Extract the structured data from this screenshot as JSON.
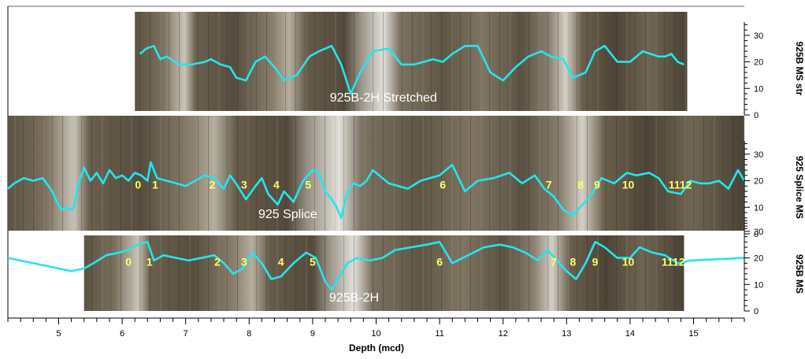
{
  "chart_data": {
    "type": "line",
    "xlabel": "Depth (mcd)",
    "xlim": [
      4.2,
      15.8
    ],
    "x_ticks": [
      5,
      6,
      7,
      8,
      9,
      10,
      11,
      12,
      13,
      14,
      15
    ],
    "ylim": [
      0,
      35
    ],
    "y_ticks": [
      0,
      10,
      20,
      30
    ],
    "line_color": "#22e6f0",
    "label_color": "#ffff66",
    "panels": [
      {
        "side_label": "925B MS str",
        "core_label": "925B-2H Stretched",
        "core_range": [
          6.2,
          14.9
        ],
        "tie_labels": [],
        "x": [
          6.28,
          6.38,
          6.5,
          6.6,
          6.7,
          6.9,
          7.1,
          7.3,
          7.4,
          7.55,
          7.7,
          7.8,
          7.95,
          8.1,
          8.25,
          8.4,
          8.55,
          8.75,
          8.95,
          9.1,
          9.3,
          9.45,
          9.6,
          9.75,
          9.95,
          10.2,
          10.4,
          10.6,
          10.9,
          11.05,
          11.2,
          11.4,
          11.6,
          11.8,
          12.0,
          12.2,
          12.4,
          12.6,
          12.75,
          12.95,
          13.1,
          13.3,
          13.45,
          13.6,
          13.8,
          14.0,
          14.2,
          14.45,
          14.55,
          14.65,
          14.75,
          14.85
        ],
        "y": [
          23,
          25,
          26,
          21,
          22,
          19,
          19,
          20,
          21,
          19,
          18,
          14,
          13,
          20,
          22,
          18,
          13,
          15,
          22,
          24,
          26,
          19,
          8,
          16,
          24,
          25,
          19,
          19,
          21,
          20,
          23,
          26,
          26,
          16,
          13,
          18,
          22,
          24,
          22,
          21,
          14,
          16,
          24,
          26,
          20,
          20,
          24,
          22,
          22,
          23,
          20,
          19
        ]
      },
      {
        "side_label": "925 Splice MS",
        "core_label": "925 Splice",
        "core_range": [
          4.2,
          15.8
        ],
        "tie_labels": [
          {
            "text": "0",
            "x": 6.25
          },
          {
            "text": "1",
            "x": 6.52
          },
          {
            "text": "2",
            "x": 7.42
          },
          {
            "text": "3",
            "x": 7.92
          },
          {
            "text": "4",
            "x": 8.43
          },
          {
            "text": "5",
            "x": 8.93
          },
          {
            "text": "6",
            "x": 11.05
          },
          {
            "text": "7",
            "x": 12.72
          },
          {
            "text": "8",
            "x": 13.22
          },
          {
            "text": "9",
            "x": 13.48
          },
          {
            "text": "10",
            "x": 13.97
          },
          {
            "text": "1112",
            "x": 14.79
          }
        ],
        "x": [
          4.2,
          4.3,
          4.45,
          4.6,
          4.75,
          4.9,
          4.97,
          5.05,
          5.12,
          5.18,
          5.24,
          5.3,
          5.4,
          5.5,
          5.6,
          5.7,
          5.8,
          5.9,
          6.0,
          6.1,
          6.2,
          6.3,
          6.4,
          6.45,
          6.55,
          6.7,
          6.85,
          7.0,
          7.15,
          7.3,
          7.45,
          7.6,
          7.7,
          7.82,
          7.95,
          8.1,
          8.2,
          8.3,
          8.45,
          8.55,
          8.7,
          8.85,
          9.0,
          9.1,
          9.2,
          9.3,
          9.38,
          9.45,
          9.55,
          9.65,
          9.75,
          9.85,
          9.95,
          10.2,
          10.5,
          10.7,
          11.0,
          11.2,
          11.4,
          11.6,
          11.85,
          12.1,
          12.3,
          12.5,
          12.65,
          12.8,
          12.95,
          13.1,
          13.25,
          13.4,
          13.55,
          13.75,
          13.95,
          14.1,
          14.3,
          14.45,
          14.6,
          14.8,
          14.95,
          15.1,
          15.25,
          15.4,
          15.55,
          15.7,
          15.8
        ],
        "y": [
          17,
          19,
          21,
          20,
          21,
          16,
          12,
          9,
          10,
          9,
          10,
          18,
          25,
          20,
          23,
          19,
          24,
          21,
          22,
          20,
          23,
          22,
          20,
          27,
          21,
          20,
          19,
          18,
          20,
          22,
          21,
          17,
          22,
          18,
          13,
          18,
          21,
          15,
          11,
          16,
          12,
          20,
          24,
          23,
          16,
          13,
          10,
          6,
          16,
          19,
          18,
          20,
          24,
          19,
          17,
          20,
          22,
          26,
          16,
          20,
          21,
          23,
          19,
          22,
          17,
          14,
          9,
          7,
          11,
          15,
          21,
          19,
          23,
          22,
          23,
          21,
          16,
          15,
          20,
          19,
          19,
          20,
          17,
          24,
          20
        ]
      },
      {
        "side_label": "925B MS",
        "core_label": "925B-2H",
        "core_range": [
          5.4,
          14.85
        ],
        "tie_labels": [
          {
            "text": "0",
            "x": 6.1
          },
          {
            "text": "1",
            "x": 6.43
          },
          {
            "text": "2",
            "x": 7.5
          },
          {
            "text": "3",
            "x": 7.92
          },
          {
            "text": "4",
            "x": 8.5
          },
          {
            "text": "5",
            "x": 9.0
          },
          {
            "text": "6",
            "x": 11.0
          },
          {
            "text": "7",
            "x": 12.8
          },
          {
            "text": "8",
            "x": 13.1
          },
          {
            "text": "9",
            "x": 13.45
          },
          {
            "text": "10",
            "x": 13.97
          },
          {
            "text": "1112",
            "x": 14.68
          }
        ],
        "x": [
          4.2,
          5.2,
          5.4,
          5.55,
          5.75,
          5.95,
          6.1,
          6.25,
          6.4,
          6.5,
          6.65,
          6.85,
          7.05,
          7.25,
          7.45,
          7.6,
          7.75,
          7.9,
          8.05,
          8.2,
          8.35,
          8.5,
          8.7,
          8.9,
          9.05,
          9.2,
          9.3,
          9.45,
          9.55,
          9.7,
          9.9,
          10.1,
          10.3,
          10.55,
          10.8,
          11.0,
          11.2,
          11.45,
          11.7,
          11.95,
          12.15,
          12.35,
          12.55,
          12.7,
          12.85,
          13.0,
          13.15,
          13.3,
          13.45,
          13.6,
          13.8,
          14.0,
          14.15,
          14.35,
          14.55,
          14.75,
          14.95,
          15.8
        ],
        "y": [
          20,
          15,
          16,
          18,
          21,
          22,
          23,
          25,
          26,
          19,
          21,
          20,
          19,
          20,
          21,
          18,
          14,
          16,
          22,
          18,
          12,
          13,
          18,
          22,
          20,
          11,
          8,
          14,
          18,
          20,
          19,
          20,
          23,
          24,
          25,
          26,
          18,
          21,
          24,
          25,
          24,
          22,
          19,
          23,
          19,
          15,
          12,
          18,
          26,
          24,
          20,
          20,
          24,
          22,
          21,
          18,
          19,
          20
        ]
      }
    ]
  }
}
